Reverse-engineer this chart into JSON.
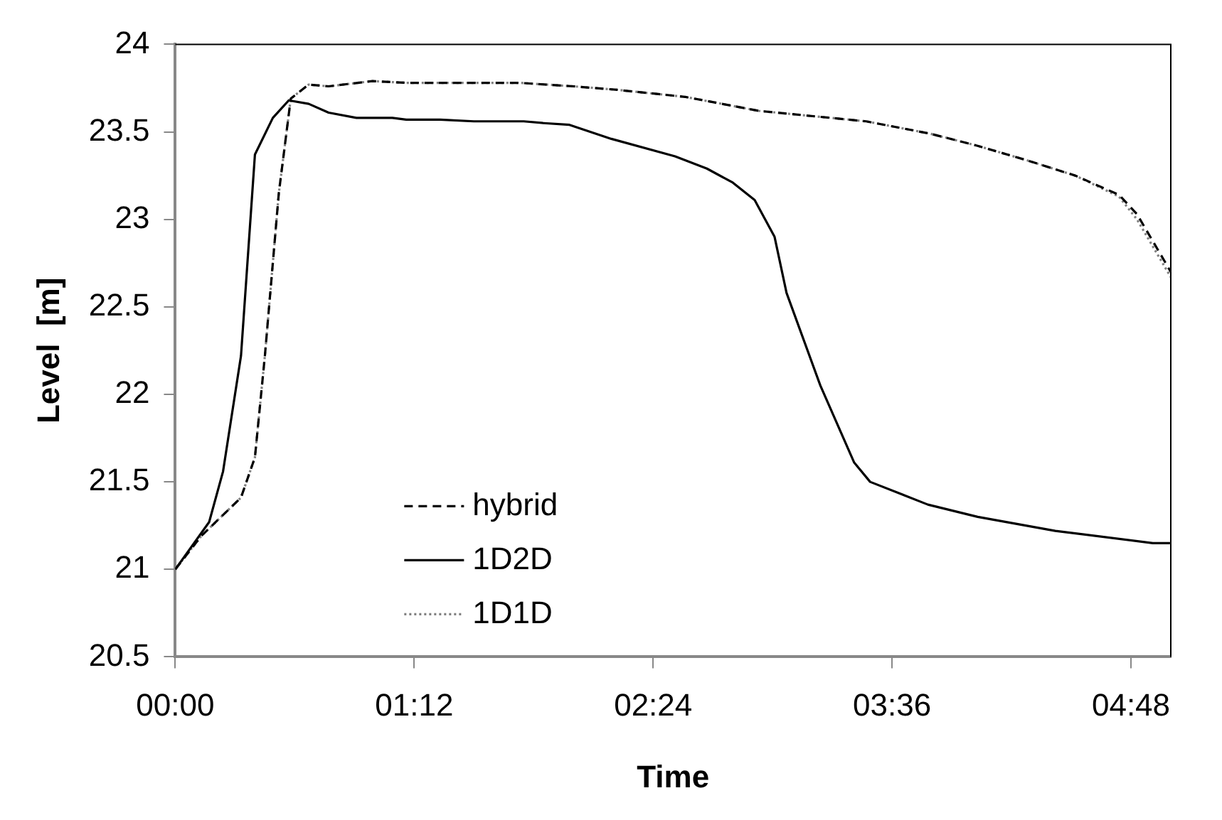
{
  "chart_data": {
    "type": "line",
    "xlabel": "Time",
    "ylabel": "Level  [m]",
    "xlim": [
      0,
      5
    ],
    "xticks": [
      {
        "value": 0,
        "label": "00:00"
      },
      {
        "value": 1.2,
        "label": "01:12"
      },
      {
        "value": 2.4,
        "label": "02:24"
      },
      {
        "value": 3.6,
        "label": "03:36"
      },
      {
        "value": 4.8,
        "label": "04:48"
      }
    ],
    "ylim": [
      20.5,
      24
    ],
    "yticks": [
      20.5,
      21,
      21.5,
      22,
      22.5,
      23,
      23.5,
      24
    ],
    "grid": false,
    "legend": "bottom left",
    "marker": "none",
    "series": [
      {
        "name": "hybrid",
        "color": "#000000",
        "line_style": "dashed",
        "x": [
          0,
          0.13,
          0.33,
          0.4,
          0.45,
          0.52,
          0.58,
          0.67,
          0.77,
          0.99,
          1.16,
          1.33,
          1.73,
          2.0,
          2.22,
          2.56,
          2.93,
          3.47,
          3.79,
          4.03,
          4.27,
          4.52,
          4.74,
          4.83,
          5.0
        ],
        "values": [
          21.0,
          21.19,
          21.41,
          21.64,
          22.22,
          23.15,
          23.69,
          23.77,
          23.76,
          23.79,
          23.78,
          23.78,
          23.78,
          23.76,
          23.74,
          23.7,
          23.62,
          23.56,
          23.49,
          23.42,
          23.34,
          23.25,
          23.14,
          23.03,
          22.7
        ]
      },
      {
        "name": "1D2D",
        "color": "#000000",
        "line_style": "solid",
        "x": [
          0,
          0.17,
          0.24,
          0.33,
          0.4,
          0.49,
          0.57,
          0.67,
          0.77,
          0.91,
          1.09,
          1.16,
          1.33,
          1.5,
          1.75,
          1.85,
          1.98,
          2.19,
          2.51,
          2.67,
          2.8,
          2.91,
          3.01,
          3.07,
          3.24,
          3.41,
          3.49,
          3.78,
          4.03,
          4.42,
          4.91,
          5.0
        ],
        "values": [
          21.0,
          21.27,
          21.56,
          22.22,
          23.37,
          23.58,
          23.68,
          23.66,
          23.61,
          23.58,
          23.58,
          23.57,
          23.57,
          23.56,
          23.56,
          23.55,
          23.54,
          23.46,
          23.36,
          23.29,
          23.21,
          23.11,
          22.9,
          22.58,
          22.05,
          21.61,
          21.5,
          21.37,
          21.3,
          21.22,
          21.15,
          21.15
        ]
      },
      {
        "name": "1D1D",
        "color": "#808080",
        "line_style": "dotted",
        "x": [
          0,
          0.13,
          0.33,
          0.4,
          0.45,
          0.52,
          0.58,
          0.67,
          0.77,
          0.99,
          1.16,
          1.33,
          1.73,
          2.0,
          2.22,
          2.56,
          2.93,
          3.47,
          3.79,
          4.03,
          4.27,
          4.52,
          4.74,
          4.83,
          5.0
        ],
        "values": [
          21.0,
          21.19,
          21.41,
          21.64,
          22.22,
          23.15,
          23.69,
          23.77,
          23.76,
          23.79,
          23.78,
          23.78,
          23.78,
          23.76,
          23.74,
          23.7,
          23.62,
          23.56,
          23.49,
          23.42,
          23.34,
          23.25,
          23.13,
          23.0,
          22.67
        ]
      }
    ]
  }
}
